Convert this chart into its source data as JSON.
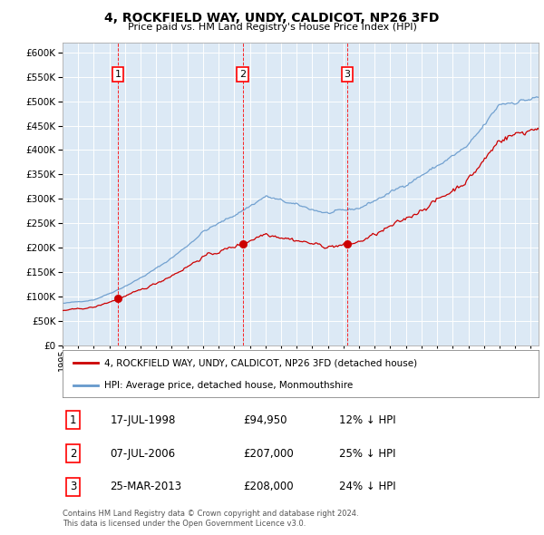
{
  "title": "4, ROCKFIELD WAY, UNDY, CALDICOT, NP26 3FD",
  "subtitle": "Price paid vs. HM Land Registry's House Price Index (HPI)",
  "background_color": "#dce9f5",
  "ylim": [
    0,
    620000
  ],
  "year_start": 1995,
  "year_end": 2025,
  "sale_years": [
    1998.54,
    2006.54,
    2013.23
  ],
  "sale_prices": [
    94950,
    207000,
    208000
  ],
  "sale_labels": [
    "1",
    "2",
    "3"
  ],
  "hpi_below": [
    "12%",
    "25%",
    "24%"
  ],
  "sale_dates_text": [
    "17-JUL-1998",
    "07-JUL-2006",
    "25-MAR-2013"
  ],
  "sale_prices_text": [
    "£94,950",
    "£207,000",
    "£208,000"
  ],
  "red_color": "#cc0000",
  "blue_color": "#6699cc",
  "legend_text1": "4, ROCKFIELD WAY, UNDY, CALDICOT, NP26 3FD (detached house)",
  "legend_text2": "HPI: Average price, detached house, Monmouthshire",
  "footer_line1": "Contains HM Land Registry data © Crown copyright and database right 2024.",
  "footer_line2": "This data is licensed under the Open Government Licence v3.0."
}
